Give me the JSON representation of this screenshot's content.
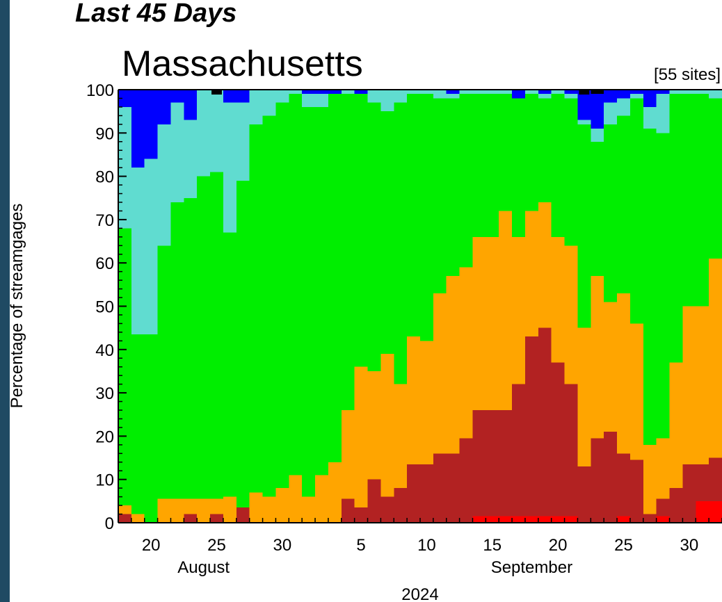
{
  "header": {
    "period": "Last 45 Days",
    "state": "Massachusetts",
    "sites": "[55 sites]"
  },
  "chart_data": {
    "type": "area",
    "ylabel": "Percentage of streamgages",
    "ylim": [
      0,
      100
    ],
    "yticks": [
      "0",
      "10",
      "20",
      "30",
      "40",
      "50",
      "60",
      "70",
      "80",
      "90",
      "100"
    ],
    "xticks": [
      {
        "day": 2,
        "label": "20"
      },
      {
        "day": 7,
        "label": "25"
      },
      {
        "day": 12,
        "label": "30"
      },
      {
        "day": 18,
        "label": "5"
      },
      {
        "day": 23,
        "label": "10"
      },
      {
        "day": 28,
        "label": "15"
      },
      {
        "day": 33,
        "label": "20"
      },
      {
        "day": 38,
        "label": "25"
      },
      {
        "day": 43,
        "label": "30"
      }
    ],
    "month_labels": [
      {
        "day": 6,
        "label": "August"
      },
      {
        "day": 31,
        "label": "September"
      }
    ],
    "year_label": "2024",
    "days": [
      "Aug 18",
      "Aug 19",
      "Aug 20",
      "Aug 21",
      "Aug 22",
      "Aug 23",
      "Aug 24",
      "Aug 25",
      "Aug 26",
      "Aug 27",
      "Aug 28",
      "Aug 29",
      "Aug 30",
      "Aug 31",
      "Sep 1",
      "Sep 2",
      "Sep 3",
      "Sep 4",
      "Sep 5",
      "Sep 6",
      "Sep 7",
      "Sep 8",
      "Sep 9",
      "Sep 10",
      "Sep 11",
      "Sep 12",
      "Sep 13",
      "Sep 14",
      "Sep 15",
      "Sep 16",
      "Sep 17",
      "Sep 18",
      "Sep 19",
      "Sep 20",
      "Sep 21",
      "Sep 22",
      "Sep 23",
      "Sep 24",
      "Sep 25",
      "Sep 26",
      "Sep 27",
      "Sep 28",
      "Sep 29",
      "Sep 30",
      "Oct 1",
      "Oct 2"
    ],
    "colors": {
      "low_red": "#ff0000",
      "much_below": "#b22222",
      "below": "#ffa500",
      "normal": "#00ee00",
      "above": "#60dcd0",
      "much_above": "#0000ff",
      "high": "#000000"
    },
    "series": [
      {
        "key": "low_red",
        "color": "#ff0000",
        "values": [
          0,
          0,
          0,
          0,
          0,
          0,
          0,
          0,
          0,
          0,
          0,
          0,
          0,
          0,
          0,
          0,
          0,
          0,
          0,
          0,
          0,
          0,
          0,
          0,
          0,
          0,
          0,
          1.5,
          1.5,
          1.5,
          1.5,
          1.5,
          1.5,
          1.5,
          1.5,
          0,
          0,
          0,
          1.5,
          0,
          0,
          1.5,
          0,
          0,
          5,
          5
        ]
      },
      {
        "key": "much_below",
        "color": "#b22222",
        "values": [
          2,
          0,
          0,
          0,
          0,
          2,
          0,
          2,
          0,
          3.5,
          0,
          0,
          0,
          0,
          0,
          0,
          0,
          5.5,
          3.5,
          10,
          6,
          8,
          13.5,
          13.5,
          16,
          16,
          19.5,
          26,
          26,
          26,
          32,
          43,
          45,
          37,
          32,
          13,
          19.5,
          21,
          16,
          14.5,
          2,
          5.5,
          8,
          13.5,
          13.5,
          15
        ]
      },
      {
        "key": "below",
        "color": "#ffa500",
        "values": [
          4,
          2,
          0,
          5.5,
          5.5,
          5.5,
          5.5,
          5.5,
          6,
          3,
          7,
          6,
          8,
          11,
          6,
          11,
          14,
          26,
          36,
          35,
          39,
          32,
          43,
          42,
          53,
          57,
          59,
          66,
          66,
          72,
          66,
          72,
          74,
          66,
          64,
          45,
          57,
          51,
          53,
          46,
          18,
          19.5,
          37,
          50,
          50,
          61
        ]
      },
      {
        "key": "normal",
        "color": "#00ee00",
        "values": [
          68,
          43.5,
          43.5,
          64,
          74,
          75,
          80,
          81,
          67,
          79,
          92,
          94,
          97,
          99,
          96,
          96,
          99,
          99,
          99,
          97,
          95,
          97,
          99,
          99,
          98,
          98,
          99,
          99,
          99,
          99,
          98,
          99,
          98,
          99,
          98,
          92,
          88,
          92,
          94,
          98,
          91,
          90,
          99,
          99,
          99,
          98
        ]
      },
      {
        "key": "above",
        "color": "#60dcd0",
        "values": [
          96,
          82,
          84,
          92,
          97,
          93,
          100,
          100,
          97,
          97,
          100,
          100,
          100,
          100,
          99,
          99,
          98,
          100,
          99,
          100,
          100,
          100,
          100,
          100,
          100,
          99,
          100,
          100,
          100,
          100,
          98,
          100,
          99,
          100,
          99,
          93,
          91,
          97,
          98,
          99,
          96,
          99,
          100,
          100,
          100,
          100
        ]
      },
      {
        "key": "much_above",
        "color": "#0000ff",
        "values": [
          100,
          100,
          100,
          100,
          100,
          100,
          100,
          100,
          100,
          100,
          100,
          100,
          100,
          100,
          100,
          100,
          100,
          100,
          100,
          100,
          100,
          100,
          100,
          100,
          100,
          100,
          100,
          100,
          100,
          100,
          100,
          100,
          100,
          100,
          100,
          100,
          99,
          100,
          100,
          100,
          100,
          100,
          100,
          100,
          100,
          100
        ]
      },
      {
        "key": "high",
        "color": "#000000",
        "values": [
          100,
          100,
          100,
          100,
          100,
          100,
          100,
          100,
          100,
          100,
          100,
          100,
          100,
          100,
          100,
          100,
          100,
          100,
          100,
          100,
          100,
          100,
          100,
          100,
          100,
          100,
          100,
          100,
          100,
          100,
          100,
          100,
          100,
          100,
          100,
          100,
          100,
          100,
          100,
          100,
          100,
          100,
          100,
          100,
          100,
          100
        ]
      }
    ],
    "high_marks": [
      7,
      35
    ],
    "grid": false,
    "legend": "none"
  }
}
